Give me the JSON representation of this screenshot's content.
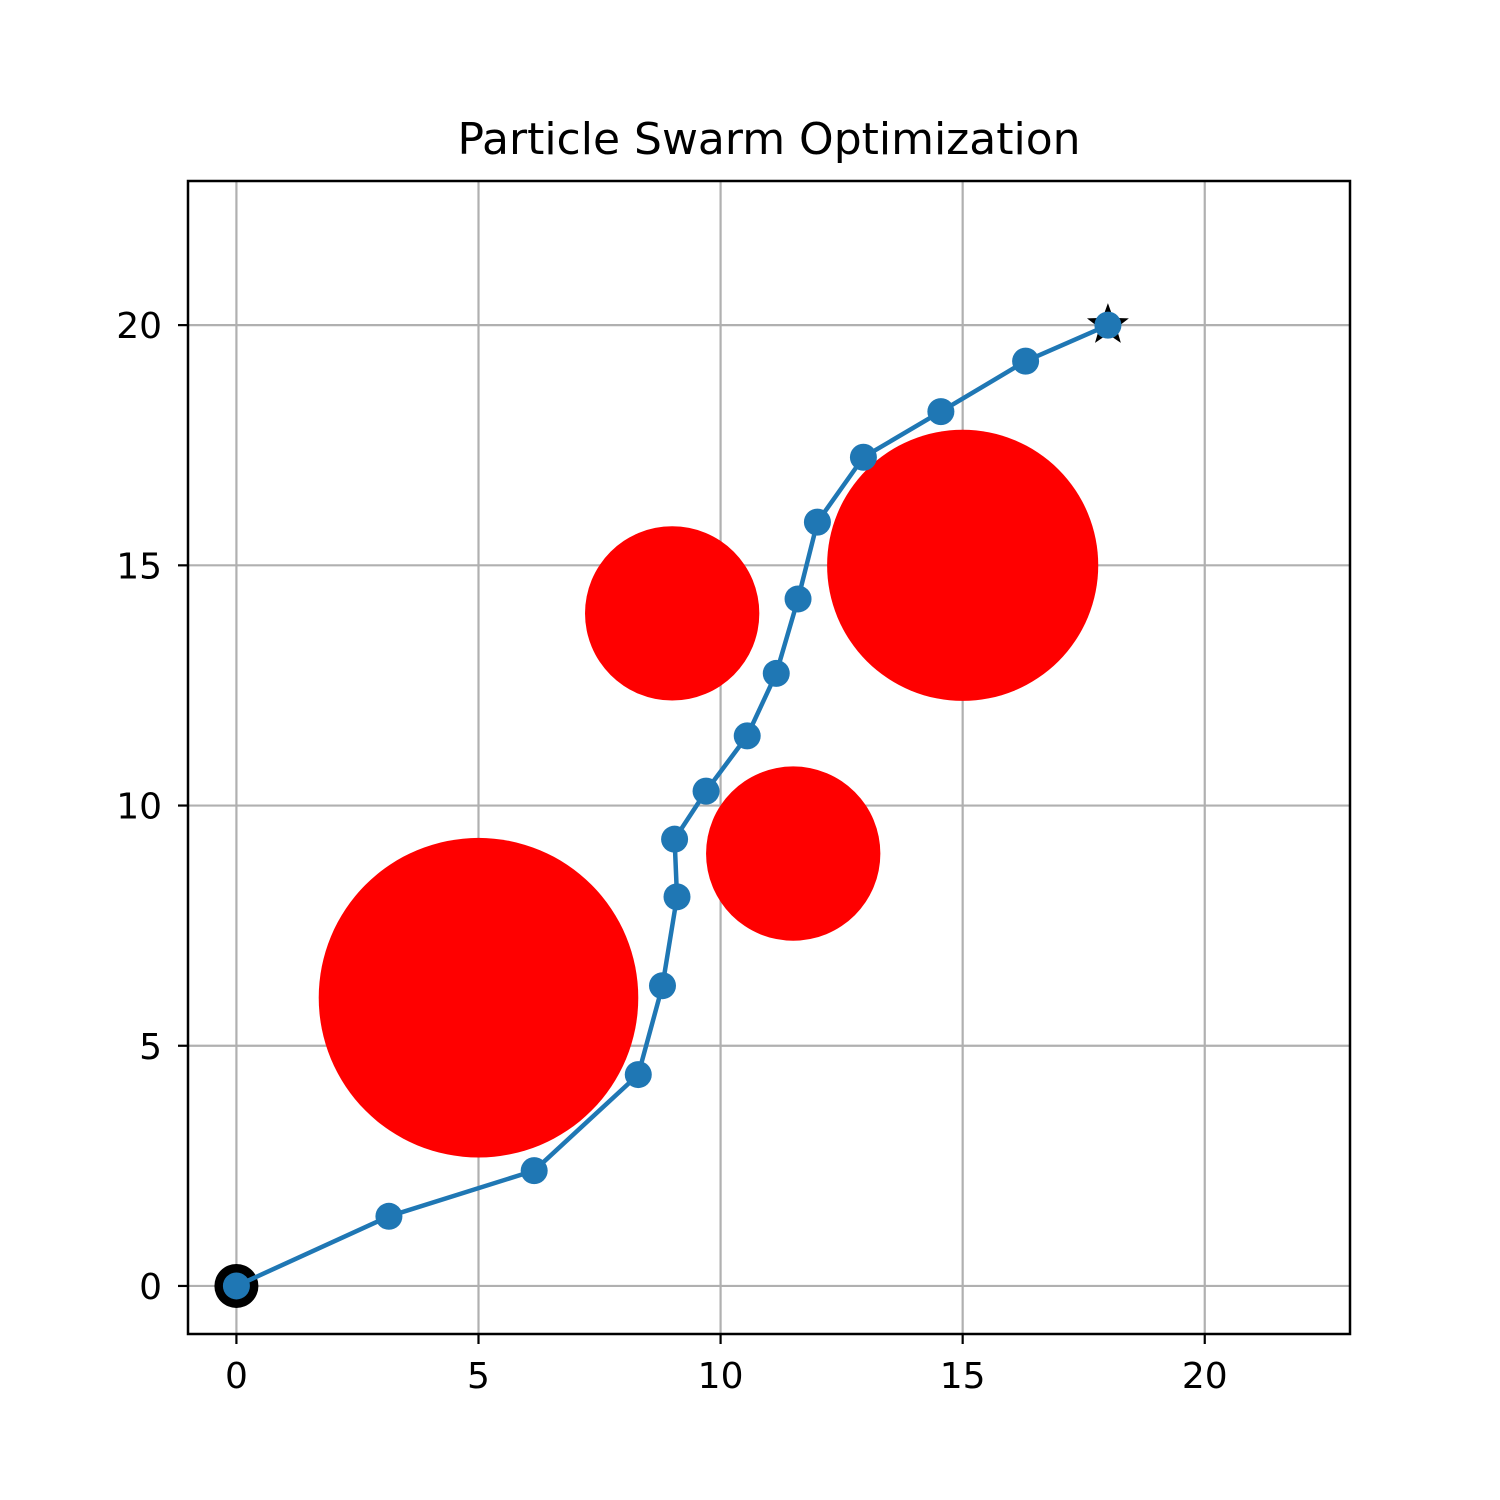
{
  "chart_data": {
    "type": "scatter",
    "title": "Particle Swarm Optimization",
    "xlabel": "",
    "ylabel": "",
    "xlim": [
      -1,
      23
    ],
    "ylim": [
      -1,
      23
    ],
    "xticks": [
      0,
      5,
      10,
      15,
      20
    ],
    "yticks": [
      0,
      5,
      10,
      15,
      20
    ],
    "grid": true,
    "obstacles": [
      {
        "cx": 5,
        "cy": 6,
        "r": 3.3
      },
      {
        "cx": 9,
        "cy": 14,
        "r": 1.8
      },
      {
        "cx": 11.5,
        "cy": 9,
        "r": 1.8
      },
      {
        "cx": 15,
        "cy": 15,
        "r": 2.8
      }
    ],
    "path": {
      "x": [
        0,
        3.15,
        6.15,
        8.3,
        8.8,
        9.1,
        9.05,
        9.7,
        10.55,
        11.15,
        11.6,
        12.0,
        12.95,
        14.55,
        16.3,
        18.0
      ],
      "y": [
        0,
        1.45,
        2.4,
        4.4,
        6.25,
        8.1,
        9.3,
        10.3,
        11.45,
        12.75,
        14.3,
        15.9,
        17.25,
        18.2,
        19.25,
        20.0
      ]
    },
    "start": {
      "x": 0,
      "y": 0
    },
    "goal": {
      "x": 18,
      "y": 20
    },
    "colors": {
      "path": "#1f77b4",
      "obstacle": "#ff0000",
      "grid": "#b0b0b0",
      "start": "#000000",
      "goal": "#000000"
    }
  }
}
